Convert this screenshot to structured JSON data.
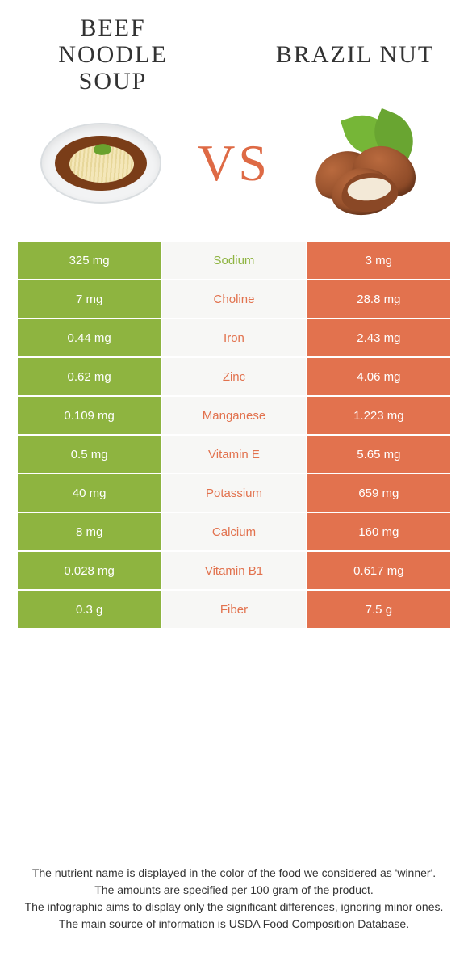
{
  "colors": {
    "left_bg": "#8eb440",
    "right_bg": "#e2724e",
    "mid_bg": "#f7f7f5",
    "left_text": "#ffffff",
    "right_text": "#ffffff",
    "vs_color": "#de6a45",
    "label_left": "#8eb440",
    "label_right": "#e2724e",
    "body_text": "#333333"
  },
  "header": {
    "left_title": "Beef noodle soup",
    "right_title": "Brazil nut",
    "vs": "VS"
  },
  "images": {
    "left": "beef-noodle-soup",
    "right": "brazil-nut"
  },
  "table": {
    "rows": [
      {
        "left": "325 mg",
        "label": "Sodium",
        "right": "3 mg",
        "winner": "left"
      },
      {
        "left": "7 mg",
        "label": "Choline",
        "right": "28.8 mg",
        "winner": "right"
      },
      {
        "left": "0.44 mg",
        "label": "Iron",
        "right": "2.43 mg",
        "winner": "right"
      },
      {
        "left": "0.62 mg",
        "label": "Zinc",
        "right": "4.06 mg",
        "winner": "right"
      },
      {
        "left": "0.109 mg",
        "label": "Manganese",
        "right": "1.223 mg",
        "winner": "right"
      },
      {
        "left": "0.5 mg",
        "label": "Vitamin E",
        "right": "5.65 mg",
        "winner": "right"
      },
      {
        "left": "40 mg",
        "label": "Potassium",
        "right": "659 mg",
        "winner": "right"
      },
      {
        "left": "8 mg",
        "label": "Calcium",
        "right": "160 mg",
        "winner": "right"
      },
      {
        "left": "0.028 mg",
        "label": "Vitamin B1",
        "right": "0.617 mg",
        "winner": "right"
      },
      {
        "left": "0.3 g",
        "label": "Fiber",
        "right": "7.5 g",
        "winner": "right"
      }
    ]
  },
  "footnote": {
    "line1": "The nutrient name is displayed in the color of the food we considered as 'winner'.",
    "line2": "The amounts are specified per 100 gram of the product.",
    "line3": "The infographic aims to display only the significant differences, ignoring minor ones.",
    "line4": "The main source of information is USDA Food Composition Database."
  }
}
